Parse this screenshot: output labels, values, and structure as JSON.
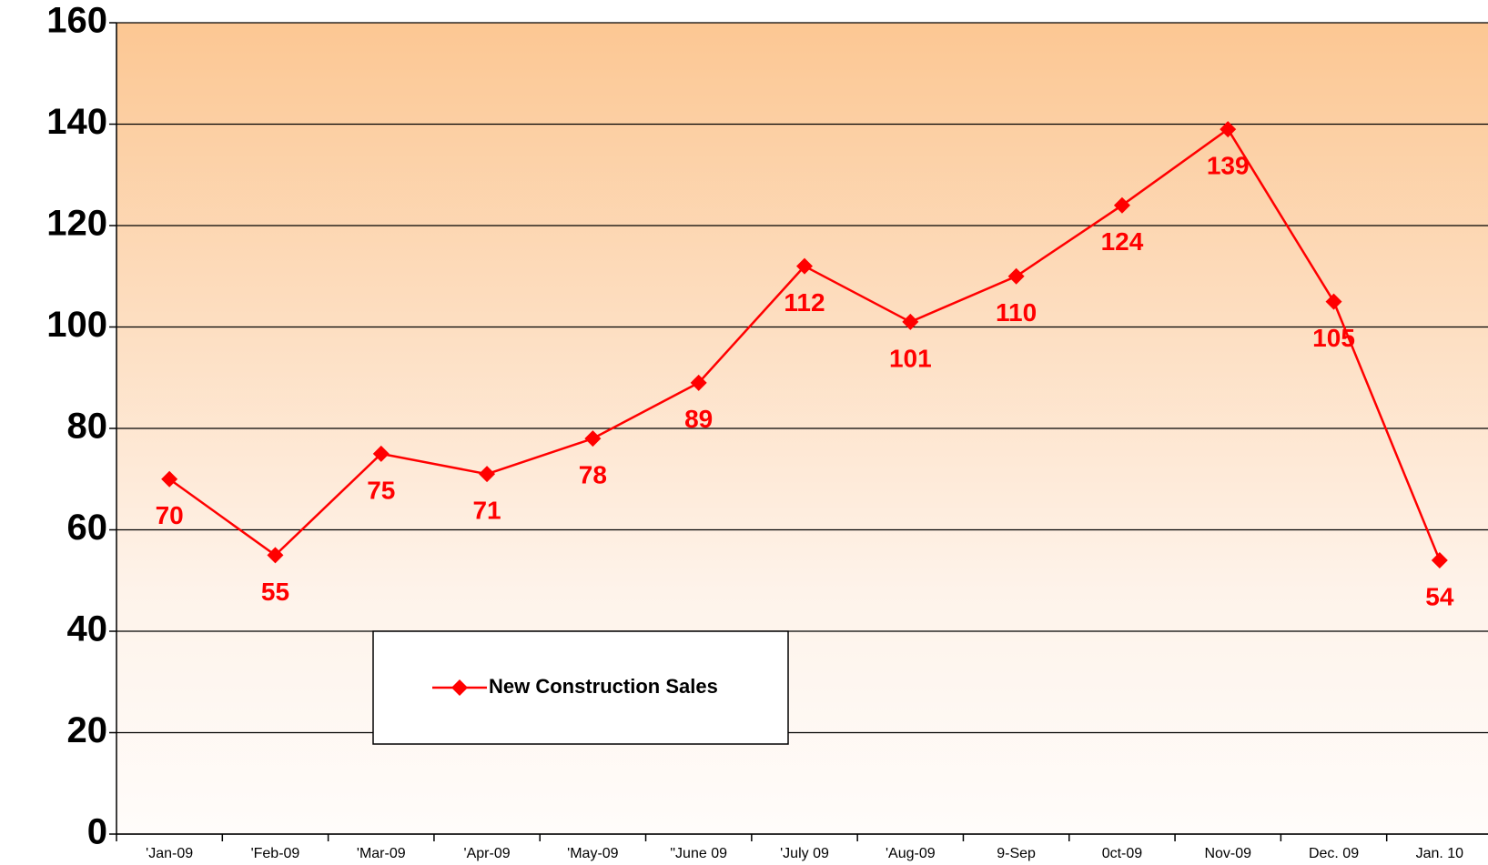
{
  "chart_data": {
    "type": "line",
    "categories": [
      "'Jan-09",
      "'Feb-09",
      "'Mar-09",
      "'Apr-09",
      "'May-09",
      "\"June 09",
      "'July 09",
      "'Aug-09",
      "9-Sep",
      "0ct-09",
      "Nov-09",
      "Dec. 09",
      "Jan. 10"
    ],
    "series": [
      {
        "name": "New Construction Sales",
        "color": "#ff0000",
        "values": [
          70,
          55,
          75,
          71,
          78,
          89,
          112,
          101,
          110,
          124,
          139,
          105,
          54
        ]
      }
    ],
    "ylim": [
      0,
      160
    ],
    "yticks": [
      0,
      20,
      40,
      60,
      80,
      100,
      120,
      140,
      160
    ],
    "grid": true
  }
}
